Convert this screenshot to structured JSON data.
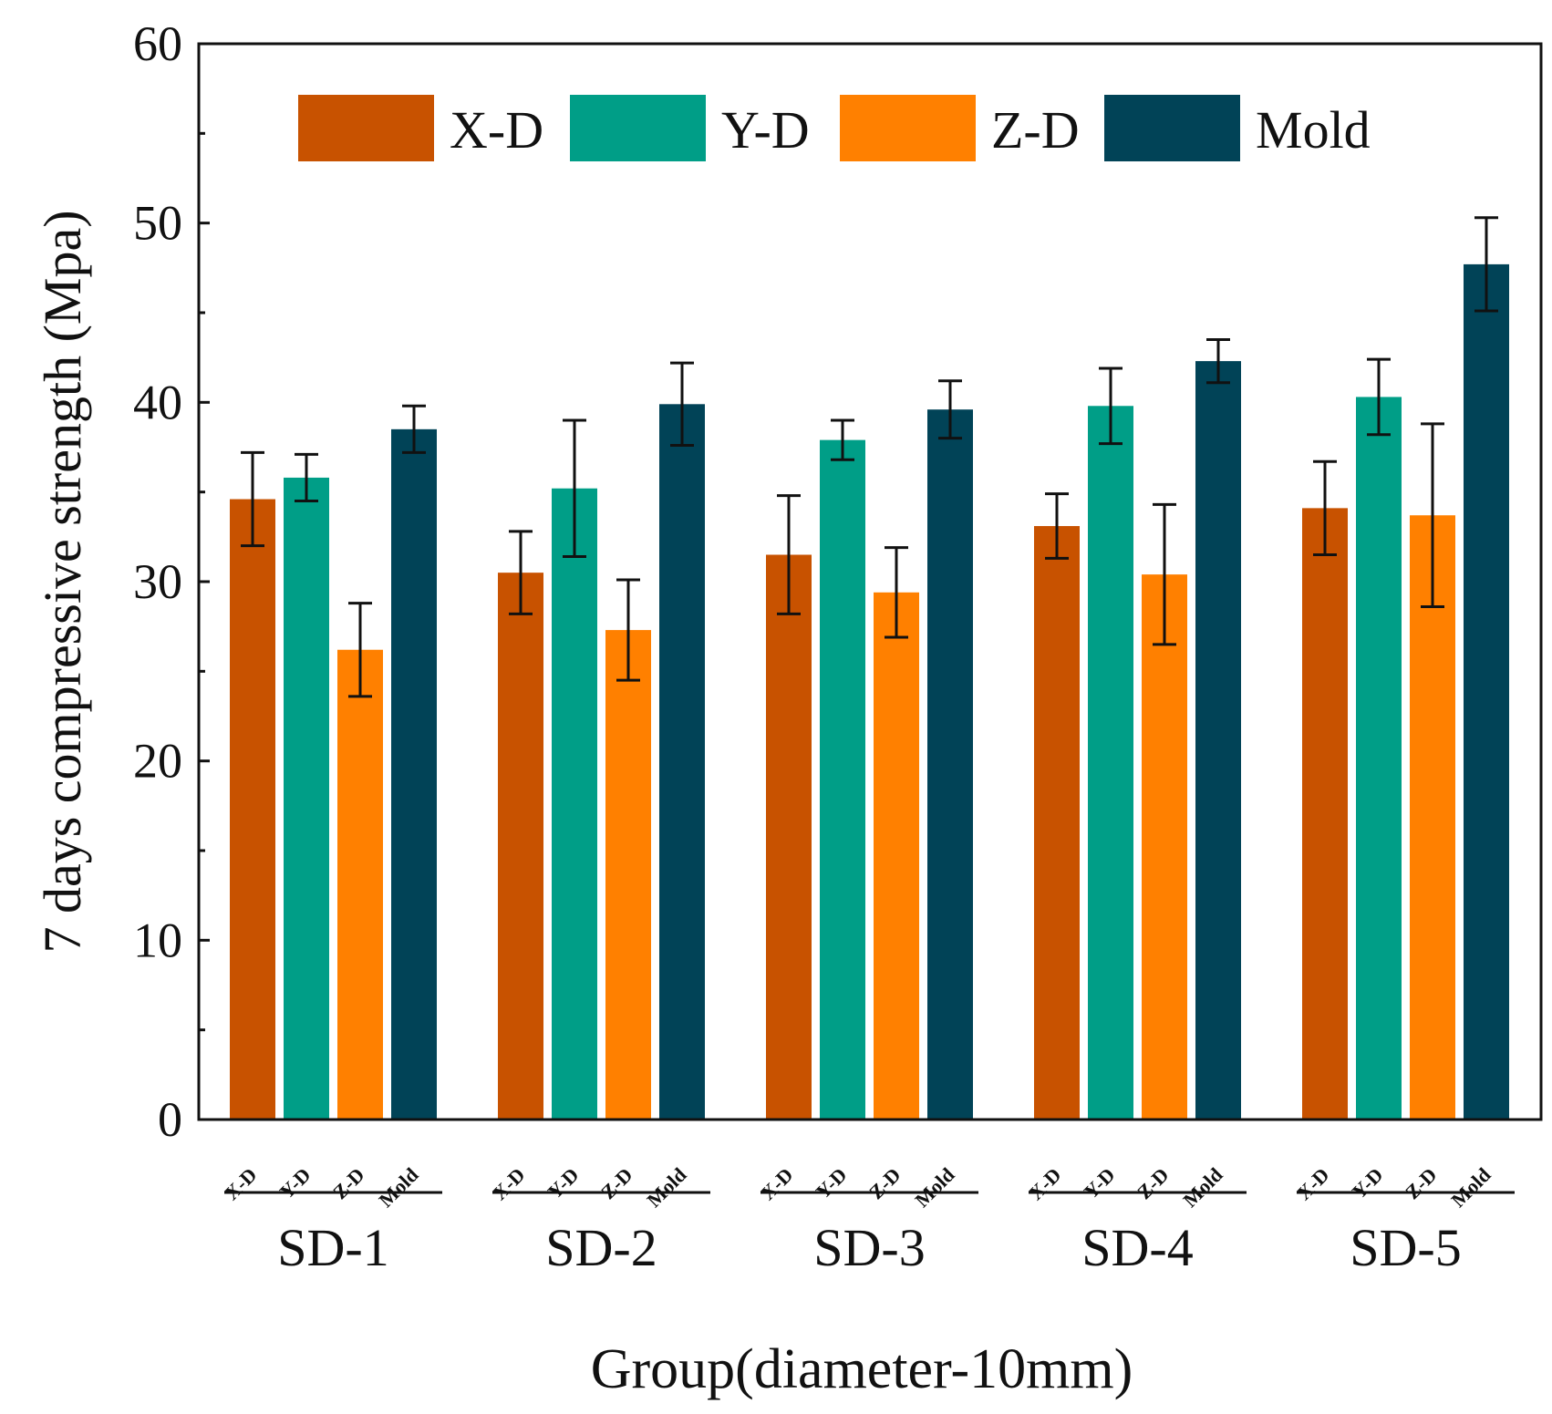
{
  "chart_data": {
    "type": "bar",
    "title": "",
    "ylabel": "7 days compressive strength (Mpa)",
    "xlabel": "Group(diameter-10mm)",
    "ylim": [
      0,
      60
    ],
    "yticks": [
      0,
      10,
      20,
      30,
      40,
      50,
      60
    ],
    "grid": false,
    "legend_position": "top",
    "categories": [
      "SD-1",
      "SD-2",
      "SD-3",
      "SD-4",
      "SD-5"
    ],
    "sub_labels": [
      "X-D",
      "Y-D",
      "Z-D",
      "Mold"
    ],
    "series": [
      {
        "name": "X-D",
        "color": "#c85200",
        "values": [
          34.6,
          30.5,
          31.5,
          33.1,
          34.1
        ],
        "errors": [
          2.6,
          2.3,
          3.3,
          1.8,
          2.6
        ]
      },
      {
        "name": "Y-D",
        "color": "#009e87",
        "values": [
          35.8,
          35.2,
          37.9,
          39.8,
          40.3
        ],
        "errors": [
          1.3,
          3.8,
          1.1,
          2.1,
          2.1
        ]
      },
      {
        "name": "Z-D",
        "color": "#ff8000",
        "values": [
          26.2,
          27.3,
          29.4,
          30.4,
          33.7
        ],
        "errors": [
          2.6,
          2.8,
          2.5,
          3.9,
          5.1
        ]
      },
      {
        "name": "Mold",
        "color": "#014357",
        "values": [
          38.5,
          39.9,
          39.6,
          42.3,
          47.7
        ],
        "errors": [
          1.3,
          2.3,
          1.6,
          1.2,
          2.6
        ]
      }
    ]
  }
}
